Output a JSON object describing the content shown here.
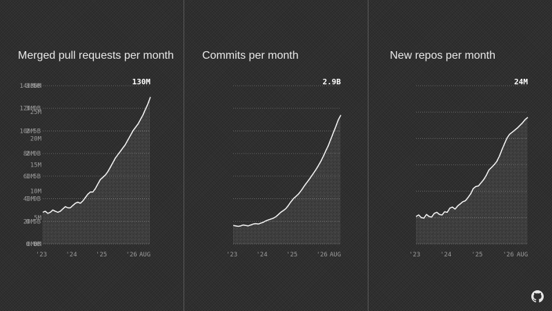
{
  "colors": {
    "background": "#2f2f2f",
    "line": "#f2f2f2",
    "grid": "#9a9a9a",
    "axis_text": "#9c9c9c",
    "title": "#eaeaea",
    "divider": "#5a5a5a"
  },
  "footer": {
    "icon": "github-icon"
  },
  "chart_data": [
    {
      "type": "area",
      "title": "Merged pull requests per month",
      "end_label": "130M",
      "ylim": [
        0,
        140
      ],
      "yticks": [
        0,
        20,
        40,
        60,
        80,
        100,
        120,
        140
      ],
      "ytick_labels": [
        "0M",
        "20M",
        "40M",
        "60M",
        "80M",
        "100M",
        "120M",
        "140M"
      ],
      "xlim": [
        0,
        43
      ],
      "xticks": [
        0,
        12,
        24,
        36,
        43
      ],
      "xtick_labels": [
        "'23",
        "'24",
        "'25",
        "'26",
        "AUG"
      ],
      "x": [
        0,
        1,
        2,
        3,
        4,
        5,
        6,
        7,
        8,
        9,
        10,
        11,
        12,
        13,
        14,
        15,
        16,
        17,
        18,
        19,
        20,
        21,
        22,
        23,
        24,
        25,
        26,
        27,
        28,
        29,
        30,
        31,
        32,
        33,
        34,
        35,
        36,
        37,
        38,
        39,
        40,
        41,
        42,
        43
      ],
      "y": [
        28,
        29,
        27,
        28,
        30,
        29,
        28,
        29,
        31,
        33,
        32,
        32,
        34,
        36,
        37,
        36,
        38,
        41,
        44,
        46,
        46,
        49,
        53,
        57,
        59,
        61,
        64,
        68,
        72,
        76,
        79,
        82,
        85,
        88,
        92,
        96,
        100,
        103,
        106,
        110,
        114,
        119,
        124,
        130
      ]
    },
    {
      "type": "area",
      "title": "Commits per month",
      "end_label": "2.9B",
      "ylim": [
        0,
        3.5
      ],
      "yticks": [
        0,
        0.5,
        1.0,
        1.5,
        2.0,
        2.5,
        3.0,
        3.5
      ],
      "ytick_labels": [
        "0.0B",
        "0.5B",
        "1.0B",
        "1.5B",
        "2.0B",
        "2.5B",
        "3.0B",
        "3.5B"
      ],
      "xlim": [
        0,
        43
      ],
      "xticks": [
        0,
        12,
        24,
        36,
        43
      ],
      "xtick_labels": [
        "'23",
        "'24",
        "'25",
        "'26",
        "AUG"
      ],
      "x": [
        0,
        1,
        2,
        3,
        4,
        5,
        6,
        7,
        8,
        9,
        10,
        11,
        12,
        13,
        14,
        15,
        16,
        17,
        18,
        19,
        20,
        21,
        22,
        23,
        24,
        25,
        26,
        27,
        28,
        29,
        30,
        31,
        32,
        33,
        34,
        35,
        36,
        37,
        38,
        39,
        40,
        41,
        42,
        43
      ],
      "y": [
        0.41,
        0.4,
        0.39,
        0.4,
        0.42,
        0.41,
        0.4,
        0.42,
        0.44,
        0.45,
        0.44,
        0.46,
        0.48,
        0.51,
        0.53,
        0.55,
        0.57,
        0.6,
        0.65,
        0.7,
        0.74,
        0.78,
        0.85,
        0.93,
        1.0,
        1.05,
        1.1,
        1.17,
        1.25,
        1.33,
        1.4,
        1.48,
        1.56,
        1.64,
        1.73,
        1.83,
        1.94,
        2.06,
        2.18,
        2.32,
        2.46,
        2.6,
        2.75,
        2.85
      ]
    },
    {
      "type": "area",
      "title": "New repos per month",
      "end_label": "24M",
      "ylim": [
        0,
        30
      ],
      "yticks": [
        0,
        5,
        10,
        15,
        20,
        25,
        30
      ],
      "ytick_labels": [
        "0M",
        "5M",
        "10M",
        "15M",
        "20M",
        "25M",
        "30M"
      ],
      "xlim": [
        0,
        43
      ],
      "xticks": [
        0,
        12,
        24,
        36,
        43
      ],
      "xtick_labels": [
        "'23",
        "'24",
        "'25",
        "'26",
        "AUG"
      ],
      "x": [
        0,
        1,
        2,
        3,
        4,
        5,
        6,
        7,
        8,
        9,
        10,
        11,
        12,
        13,
        14,
        15,
        16,
        17,
        18,
        19,
        20,
        21,
        22,
        23,
        24,
        25,
        26,
        27,
        28,
        29,
        30,
        31,
        32,
        33,
        34,
        35,
        36,
        37,
        38,
        39,
        40,
        41,
        42,
        43
      ],
      "y": [
        5.2,
        5.5,
        5.0,
        4.9,
        5.6,
        5.2,
        5.1,
        5.8,
        6.0,
        5.6,
        5.5,
        6.1,
        6.0,
        6.8,
        7.0,
        6.6,
        7.2,
        7.6,
        8.0,
        8.2,
        8.8,
        9.5,
        10.5,
        10.9,
        11.0,
        11.6,
        12.2,
        13.0,
        14.0,
        14.5,
        15.0,
        15.6,
        16.6,
        17.8,
        19.0,
        20.1,
        20.8,
        21.2,
        21.6,
        22.0,
        22.5,
        23.0,
        23.6,
        24.0
      ]
    }
  ]
}
